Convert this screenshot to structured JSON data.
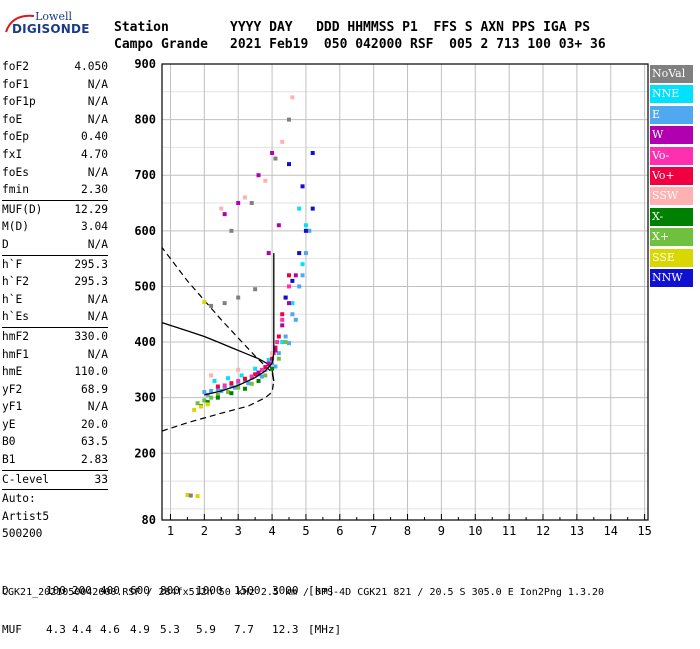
{
  "logo": {
    "line1": "Lowell",
    "line2": "DIGISONDE"
  },
  "header": {
    "station_label": "Station",
    "station_name": "Campo Grande",
    "cols_top": "YYYY DAY   DDD HHMMSS P1  FFS S AXN PPS IGA PS",
    "cols_vals": "2021 Feb19  050 042000 RSF  005 2 713 100 03+ 36"
  },
  "params": [
    {
      "k": "foF2",
      "v": "4.050"
    },
    {
      "k": "foF1",
      "v": "N/A"
    },
    {
      "k": "foF1p",
      "v": "N/A"
    },
    {
      "k": "foE",
      "v": "N/A"
    },
    {
      "k": "foEp",
      "v": "0.40"
    },
    {
      "k": "fxI",
      "v": "4.70"
    },
    {
      "k": "foEs",
      "v": "N/A"
    },
    {
      "k": "fmin",
      "v": "2.30"
    },
    {
      "sep": true
    },
    {
      "k": "MUF(D)",
      "v": "12.29"
    },
    {
      "k": "M(D)",
      "v": "3.04"
    },
    {
      "k": "D",
      "v": "N/A"
    },
    {
      "sep": true
    },
    {
      "k": "h`F",
      "v": "295.3"
    },
    {
      "k": "h`F2",
      "v": "295.3"
    },
    {
      "k": "h`E",
      "v": "N/A"
    },
    {
      "k": "h`Es",
      "v": "N/A"
    },
    {
      "sep": true
    },
    {
      "k": "hmF2",
      "v": "330.0"
    },
    {
      "k": "hmF1",
      "v": "N/A"
    },
    {
      "k": "hmE",
      "v": "110.0"
    },
    {
      "k": "yF2",
      "v": "68.9"
    },
    {
      "k": "yF1",
      "v": "N/A"
    },
    {
      "k": "yE",
      "v": "20.0"
    },
    {
      "k": "B0",
      "v": "63.5"
    },
    {
      "k": "B1",
      "v": "2.83"
    },
    {
      "sep": true
    },
    {
      "k": "C-level",
      "v": "33"
    },
    {
      "sep": true
    },
    {
      "k": "Auto:",
      "v": ""
    },
    {
      "k": "Artist5",
      "v": ""
    },
    {
      "k": "500200",
      "v": ""
    }
  ],
  "legend": [
    {
      "label": "NoVal",
      "color": "#808080"
    },
    {
      "label": "NNE",
      "color": "#00e0ff"
    },
    {
      "label": "E",
      "color": "#4fa8f0"
    },
    {
      "label": "W",
      "color": "#b000b0"
    },
    {
      "label": "Vo-",
      "color": "#ff30b0"
    },
    {
      "label": "Vo+",
      "color": "#f00040"
    },
    {
      "label": "SSW",
      "color": "#ffb0b0"
    },
    {
      "label": "X-",
      "color": "#008000"
    },
    {
      "label": "X+",
      "color": "#70c040"
    },
    {
      "label": "SSE",
      "color": "#d8d800"
    },
    {
      "label": "NNW",
      "color": "#1010d0"
    }
  ],
  "footer": {
    "d_label": "D",
    "d_values": [
      "100",
      "200",
      "400",
      "600",
      "800",
      "1000",
      "1500",
      "3000",
      "[km]"
    ],
    "muf_label": "MUF",
    "muf_values": [
      "4.3",
      "4.4",
      "4.6",
      "4.9",
      "5.3",
      "5.9",
      "7.7",
      "12.3",
      "[MHz]"
    ],
    "file_line": "CGK21_2021050042000.RSF / 284fx512h 50 kHz 2.5 km / DPS-4D CGK21 821 / 20.5 S 305.0 E Ion2Png 1.3.20"
  },
  "chart_data": {
    "type": "scatter",
    "title": "",
    "xlabel": "",
    "ylabel": "",
    "xlim": [
      0.75,
      15.1
    ],
    "ylim": [
      80,
      900
    ],
    "x_ticks": [
      1,
      2,
      3,
      4,
      5,
      6,
      7,
      8,
      9,
      10,
      11,
      12,
      13,
      14,
      15
    ],
    "y_ticks": [
      80,
      200,
      300,
      400,
      500,
      600,
      700,
      800,
      900
    ],
    "x_minor_tick_step": 0.5,
    "grid_major_x": [
      1,
      2,
      3,
      4,
      5,
      6,
      7,
      8,
      9,
      10,
      11,
      12,
      13,
      14,
      15
    ],
    "grid_major_y": [
      200,
      300,
      400,
      500,
      600,
      700,
      800,
      900
    ],
    "grid_minor_y_step": 50,
    "background": "#ffffff",
    "series": [
      {
        "legend": "E",
        "color": "#4fa8f0",
        "points": [
          [
            2.0,
            310
          ],
          [
            2.2,
            312
          ],
          [
            2.4,
            315
          ],
          [
            2.6,
            318
          ],
          [
            2.8,
            322
          ],
          [
            3.0,
            326
          ],
          [
            3.2,
            331
          ],
          [
            3.4,
            336
          ],
          [
            3.6,
            342
          ],
          [
            3.8,
            350
          ],
          [
            4.0,
            362
          ],
          [
            4.2,
            380
          ],
          [
            4.4,
            410
          ],
          [
            4.6,
            450
          ],
          [
            4.8,
            500
          ],
          [
            5.0,
            560
          ],
          [
            2.1,
            305
          ],
          [
            2.5,
            312
          ],
          [
            2.9,
            318
          ],
          [
            3.3,
            326
          ],
          [
            3.7,
            338
          ],
          [
            4.1,
            356
          ],
          [
            4.5,
            398
          ],
          [
            4.7,
            440
          ],
          [
            4.9,
            520
          ],
          [
            5.1,
            600
          ]
        ]
      },
      {
        "legend": "NNE",
        "color": "#00e0ff",
        "points": [
          [
            2.3,
            330
          ],
          [
            2.7,
            335
          ],
          [
            3.1,
            340
          ],
          [
            3.5,
            352
          ],
          [
            3.9,
            368
          ],
          [
            4.3,
            400
          ],
          [
            4.6,
            470
          ],
          [
            4.9,
            540
          ],
          [
            5.0,
            610
          ],
          [
            4.8,
            640
          ]
        ]
      },
      {
        "legend": "Vo+",
        "color": "#f00040",
        "points": [
          [
            2.4,
            320
          ],
          [
            2.8,
            326
          ],
          [
            3.2,
            334
          ],
          [
            3.5,
            342
          ],
          [
            3.8,
            355
          ],
          [
            4.0,
            370
          ],
          [
            4.1,
            390
          ],
          [
            4.2,
            410
          ],
          [
            4.3,
            450
          ],
          [
            4.4,
            480
          ],
          [
            4.5,
            520
          ]
        ]
      },
      {
        "legend": "Vo-",
        "color": "#ff30b0",
        "points": [
          [
            2.6,
            322
          ],
          [
            3.0,
            330
          ],
          [
            3.4,
            338
          ],
          [
            3.7,
            350
          ],
          [
            3.9,
            362
          ],
          [
            4.05,
            380
          ],
          [
            4.15,
            400
          ],
          [
            4.3,
            440
          ],
          [
            4.5,
            500
          ]
        ]
      },
      {
        "legend": "W",
        "color": "#b000b0",
        "points": [
          [
            3.6,
            345
          ],
          [
            3.9,
            360
          ],
          [
            4.1,
            385
          ],
          [
            4.3,
            430
          ],
          [
            4.5,
            470
          ],
          [
            4.7,
            520
          ],
          [
            3.9,
            560
          ],
          [
            4.2,
            610
          ],
          [
            2.6,
            630
          ],
          [
            3.0,
            650
          ],
          [
            3.6,
            700
          ],
          [
            4.0,
            740
          ]
        ]
      },
      {
        "legend": "NNW",
        "color": "#1010d0",
        "points": [
          [
            4.4,
            480
          ],
          [
            4.6,
            510
          ],
          [
            4.8,
            560
          ],
          [
            5.0,
            600
          ],
          [
            5.2,
            640
          ],
          [
            4.9,
            680
          ],
          [
            5.2,
            740
          ],
          [
            4.5,
            720
          ]
        ]
      },
      {
        "legend": "X+",
        "color": "#70c040",
        "points": [
          [
            1.8,
            290
          ],
          [
            2.0,
            295
          ],
          [
            2.2,
            300
          ],
          [
            2.4,
            305
          ],
          [
            2.7,
            310
          ],
          [
            3.0,
            318
          ],
          [
            3.4,
            325
          ],
          [
            3.8,
            340
          ],
          [
            4.2,
            370
          ],
          [
            4.4,
            400
          ]
        ]
      },
      {
        "legend": "X-",
        "color": "#008000",
        "points": [
          [
            1.9,
            285
          ],
          [
            2.1,
            292
          ],
          [
            2.4,
            300
          ],
          [
            2.8,
            308
          ],
          [
            3.2,
            316
          ],
          [
            3.6,
            330
          ],
          [
            4.0,
            352
          ]
        ]
      },
      {
        "legend": "SSE",
        "color": "#d8d800",
        "points": [
          [
            1.7,
            278
          ],
          [
            1.9,
            284
          ],
          [
            2.1,
            288
          ],
          [
            1.5,
            125
          ],
          [
            1.8,
            123
          ],
          [
            2.0,
            472
          ]
        ]
      },
      {
        "legend": "SSW",
        "color": "#ffb0b0",
        "points": [
          [
            2.2,
            340
          ],
          [
            3.0,
            350
          ],
          [
            4.0,
            380
          ],
          [
            2.5,
            640
          ],
          [
            3.2,
            660
          ],
          [
            3.8,
            690
          ],
          [
            4.3,
            760
          ],
          [
            4.6,
            840
          ]
        ]
      },
      {
        "legend": "NoVal",
        "color": "#808080",
        "points": [
          [
            2.2,
            465
          ],
          [
            2.6,
            470
          ],
          [
            3.0,
            480
          ],
          [
            3.5,
            495
          ],
          [
            2.8,
            600
          ],
          [
            3.4,
            650
          ],
          [
            4.1,
            730
          ],
          [
            4.5,
            800
          ],
          [
            1.6,
            124
          ]
        ]
      }
    ],
    "profile_curve": [
      [
        4.05,
        330
      ],
      [
        4.0,
        350
      ],
      [
        3.9,
        360
      ],
      [
        3.6,
        370
      ],
      [
        3.2,
        380
      ],
      [
        2.8,
        390
      ],
      [
        2.4,
        400
      ],
      [
        2.0,
        410
      ],
      [
        1.5,
        420
      ],
      [
        1.0,
        430
      ],
      [
        0.75,
        435
      ]
    ],
    "trace_curve": [
      [
        2.0,
        305
      ],
      [
        2.5,
        312
      ],
      [
        3.0,
        322
      ],
      [
        3.5,
        336
      ],
      [
        3.8,
        348
      ],
      [
        4.0,
        362
      ],
      [
        4.05,
        380
      ],
      [
        4.05,
        440
      ],
      [
        4.05,
        520
      ],
      [
        4.05,
        560
      ]
    ],
    "dashed_curve": [
      [
        0.75,
        240
      ],
      [
        1.5,
        255
      ],
      [
        2.5,
        272
      ],
      [
        3.3,
        285
      ],
      [
        3.8,
        300
      ],
      [
        4.0,
        310
      ],
      [
        4.05,
        330
      ],
      [
        4.0,
        345
      ],
      [
        3.5,
        375
      ],
      [
        2.5,
        440
      ],
      [
        1.5,
        510
      ],
      [
        0.75,
        570
      ]
    ]
  }
}
